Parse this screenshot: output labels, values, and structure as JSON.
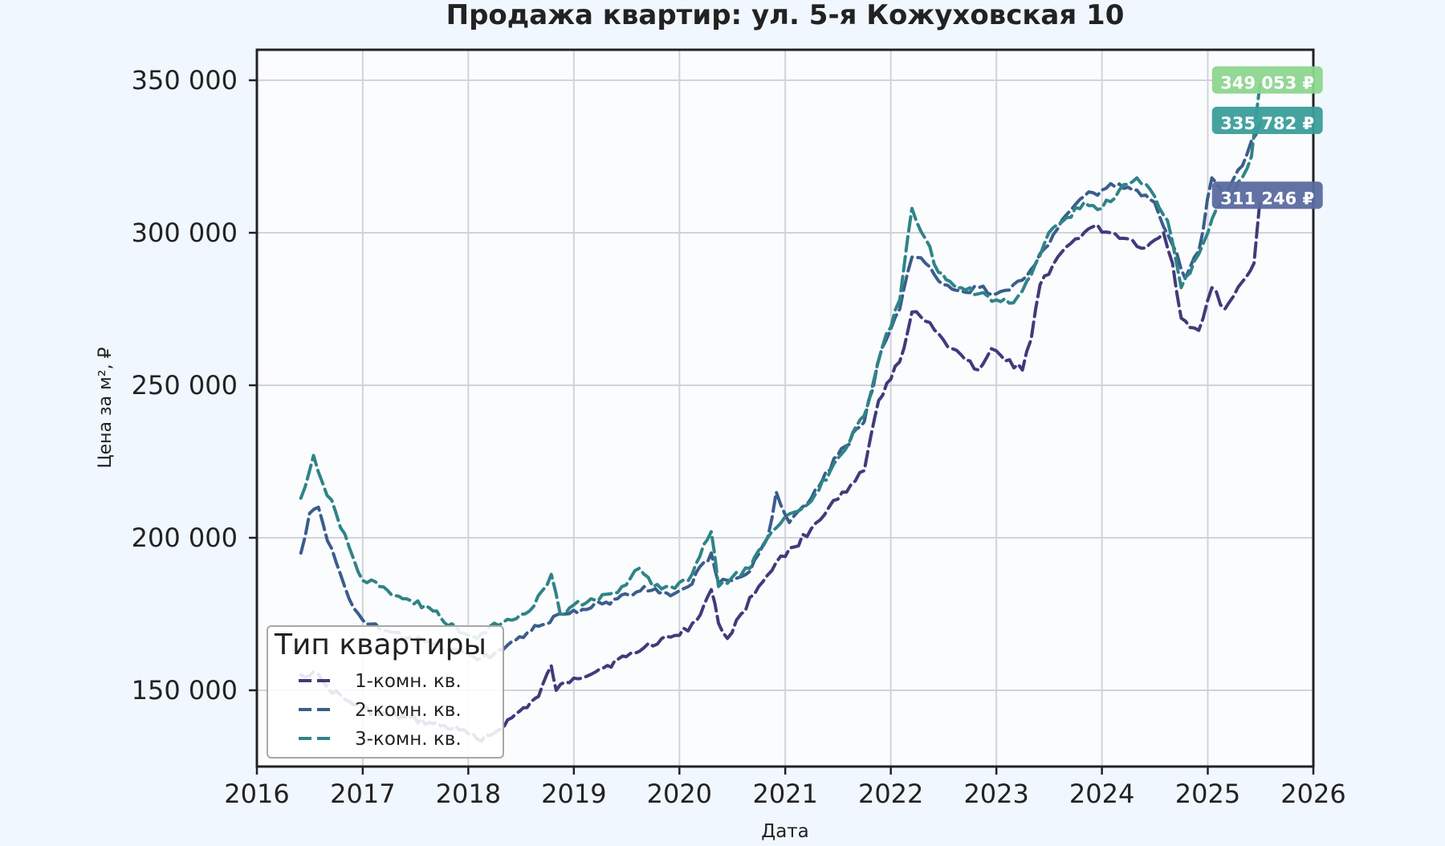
{
  "chart_data": {
    "type": "line",
    "title": "Продажа квартир: ул. 5-я Кожуховская 10",
    "xlabel": "Дата",
    "ylabel": "Цена за м², ₽",
    "xlim": [
      "2016-01-01",
      "2026-01-01"
    ],
    "ylim": [
      125000,
      360000
    ],
    "grid": true,
    "x_ticks": [
      "2016",
      "2017",
      "2018",
      "2019",
      "2020",
      "2021",
      "2022",
      "2023",
      "2024",
      "2025",
      "2026"
    ],
    "y_ticks": [
      150000,
      200000,
      250000,
      300000,
      350000
    ],
    "y_tick_labels": [
      "150 000",
      "200 000",
      "250 000",
      "300 000",
      "350 000"
    ],
    "legend": {
      "title": "Тип квартиры",
      "placement": "lower-left"
    },
    "series": [
      {
        "name": "1-комн. кв.",
        "color": "#413a7b",
        "end_label": "311 246 ₽",
        "label_color": "#5b6aa0",
        "points": [
          [
            "2016-06-01",
            155000
          ],
          [
            "2016-07-15",
            156000
          ],
          [
            "2016-09-01",
            151000
          ],
          [
            "2016-11-01",
            147000
          ],
          [
            "2017-01-01",
            144000
          ],
          [
            "2017-03-01",
            142000
          ],
          [
            "2017-06-01",
            141000
          ],
          [
            "2017-09-01",
            139000
          ],
          [
            "2017-12-01",
            137000
          ],
          [
            "2018-02-01",
            134000
          ],
          [
            "2018-04-01",
            136000
          ],
          [
            "2018-06-01",
            141000
          ],
          [
            "2018-09-01",
            148000
          ],
          [
            "2018-10-15",
            158000
          ],
          [
            "2018-11-01",
            150000
          ],
          [
            "2019-01-01",
            154000
          ],
          [
            "2019-04-01",
            157000
          ],
          [
            "2019-07-01",
            161000
          ],
          [
            "2019-09-01",
            164000
          ],
          [
            "2019-11-01",
            167000
          ],
          [
            "2020-01-01",
            168000
          ],
          [
            "2020-03-01",
            173000
          ],
          [
            "2020-04-20",
            183000
          ],
          [
            "2020-05-15",
            172000
          ],
          [
            "2020-06-15",
            167000
          ],
          [
            "2020-08-01",
            175000
          ],
          [
            "2020-10-01",
            184000
          ],
          [
            "2020-12-01",
            192000
          ],
          [
            "2021-02-01",
            197000
          ],
          [
            "2021-04-01",
            203000
          ],
          [
            "2021-06-01",
            210000
          ],
          [
            "2021-08-01",
            215000
          ],
          [
            "2021-10-01",
            222000
          ],
          [
            "2021-11-20",
            245000
          ],
          [
            "2022-01-01",
            252000
          ],
          [
            "2022-02-15",
            262000
          ],
          [
            "2022-03-15",
            274000
          ],
          [
            "2022-05-01",
            271000
          ],
          [
            "2022-07-01",
            265000
          ],
          [
            "2022-09-01",
            260000
          ],
          [
            "2022-11-01",
            255000
          ],
          [
            "2022-12-15",
            262000
          ],
          [
            "2023-02-01",
            258000
          ],
          [
            "2023-04-01",
            255000
          ],
          [
            "2023-05-01",
            265000
          ],
          [
            "2023-06-01",
            283000
          ],
          [
            "2023-08-01",
            292000
          ],
          [
            "2023-10-01",
            298000
          ],
          [
            "2023-12-01",
            302000
          ],
          [
            "2024-02-01",
            300000
          ],
          [
            "2024-04-01",
            298000
          ],
          [
            "2024-06-01",
            295000
          ],
          [
            "2024-08-01",
            300000
          ],
          [
            "2024-09-01",
            290000
          ],
          [
            "2024-10-01",
            272000
          ],
          [
            "2024-12-01",
            268000
          ],
          [
            "2025-01-15",
            282000
          ],
          [
            "2025-03-01",
            275000
          ],
          [
            "2025-05-01",
            284000
          ],
          [
            "2025-06-10",
            290000
          ],
          [
            "2025-07-01",
            311246
          ]
        ]
      },
      {
        "name": "2-комн. кв.",
        "color": "#3b5d8c",
        "end_label": "335 782 ₽",
        "label_color": "#3a9e9a",
        "points": [
          [
            "2016-06-01",
            195000
          ],
          [
            "2016-07-01",
            208000
          ],
          [
            "2016-08-01",
            210000
          ],
          [
            "2016-09-01",
            199000
          ],
          [
            "2016-10-01",
            192000
          ],
          [
            "2016-11-15",
            180000
          ],
          [
            "2017-01-01",
            173000
          ],
          [
            "2017-03-01",
            170000
          ],
          [
            "2017-06-01",
            167000
          ],
          [
            "2017-09-01",
            165000
          ],
          [
            "2017-12-01",
            163000
          ],
          [
            "2018-02-01",
            160000
          ],
          [
            "2018-04-01",
            162000
          ],
          [
            "2018-06-01",
            166000
          ],
          [
            "2018-09-01",
            171000
          ],
          [
            "2018-12-01",
            175000
          ],
          [
            "2019-03-01",
            177000
          ],
          [
            "2019-06-01",
            180000
          ],
          [
            "2019-09-01",
            184000
          ],
          [
            "2019-12-01",
            181000
          ],
          [
            "2020-02-01",
            184000
          ],
          [
            "2020-04-20",
            195000
          ],
          [
            "2020-05-15",
            185000
          ],
          [
            "2020-07-01",
            186000
          ],
          [
            "2020-09-01",
            189000
          ],
          [
            "2020-11-01",
            200000
          ],
          [
            "2020-12-01",
            215000
          ],
          [
            "2021-01-15",
            205000
          ],
          [
            "2021-04-01",
            213000
          ],
          [
            "2021-07-01",
            227000
          ],
          [
            "2021-10-01",
            238000
          ],
          [
            "2021-12-01",
            262000
          ],
          [
            "2022-02-01",
            275000
          ],
          [
            "2022-03-15",
            292000
          ],
          [
            "2022-05-01",
            290000
          ],
          [
            "2022-07-01",
            283000
          ],
          [
            "2022-09-01",
            281000
          ],
          [
            "2022-11-01",
            282000
          ],
          [
            "2023-01-01",
            280000
          ],
          [
            "2023-03-01",
            283000
          ],
          [
            "2023-05-01",
            288000
          ],
          [
            "2023-07-01",
            296000
          ],
          [
            "2023-09-01",
            306000
          ],
          [
            "2023-11-01",
            312000
          ],
          [
            "2024-01-01",
            314000
          ],
          [
            "2024-03-01",
            316000
          ],
          [
            "2024-05-01",
            314000
          ],
          [
            "2024-07-01",
            310000
          ],
          [
            "2024-09-01",
            296000
          ],
          [
            "2024-10-15",
            285000
          ],
          [
            "2024-12-01",
            294000
          ],
          [
            "2025-01-15",
            318000
          ],
          [
            "2025-03-01",
            312000
          ],
          [
            "2025-05-01",
            322000
          ],
          [
            "2025-07-01",
            335782
          ]
        ]
      },
      {
        "name": "3-комн. кв.",
        "color": "#2f8487",
        "end_label": "349 053 ₽",
        "label_color": "#8dd68f",
        "points": [
          [
            "2016-06-01",
            213000
          ],
          [
            "2016-07-15",
            227000
          ],
          [
            "2016-08-15",
            218000
          ],
          [
            "2016-10-01",
            208000
          ],
          [
            "2016-11-15",
            197000
          ],
          [
            "2017-01-01",
            186000
          ],
          [
            "2017-03-01",
            184000
          ],
          [
            "2017-06-01",
            180000
          ],
          [
            "2017-09-01",
            176000
          ],
          [
            "2017-12-01",
            169000
          ],
          [
            "2018-02-01",
            167000
          ],
          [
            "2018-04-01",
            172000
          ],
          [
            "2018-06-01",
            173000
          ],
          [
            "2018-08-01",
            176000
          ],
          [
            "2018-10-15",
            188000
          ],
          [
            "2018-11-15",
            175000
          ],
          [
            "2019-01-01",
            178000
          ],
          [
            "2019-03-01",
            180000
          ],
          [
            "2019-06-01",
            182000
          ],
          [
            "2019-08-15",
            190000
          ],
          [
            "2019-10-01",
            184000
          ],
          [
            "2019-12-01",
            184000
          ],
          [
            "2020-02-01",
            186000
          ],
          [
            "2020-04-20",
            202000
          ],
          [
            "2020-05-15",
            184000
          ],
          [
            "2020-07-01",
            187000
          ],
          [
            "2020-09-01",
            190000
          ],
          [
            "2020-11-01",
            200000
          ],
          [
            "2021-01-01",
            207000
          ],
          [
            "2021-04-01",
            212000
          ],
          [
            "2021-07-01",
            226000
          ],
          [
            "2021-10-01",
            240000
          ],
          [
            "2021-12-01",
            262000
          ],
          [
            "2022-02-01",
            278000
          ],
          [
            "2022-03-15",
            308000
          ],
          [
            "2022-05-01",
            298000
          ],
          [
            "2022-06-15",
            287000
          ],
          [
            "2022-09-01",
            282000
          ],
          [
            "2022-11-01",
            280000
          ],
          [
            "2023-01-01",
            278000
          ],
          [
            "2023-03-01",
            277000
          ],
          [
            "2023-05-01",
            286000
          ],
          [
            "2023-07-01",
            300000
          ],
          [
            "2023-09-01",
            305000
          ],
          [
            "2023-11-01",
            310000
          ],
          [
            "2024-01-01",
            308000
          ],
          [
            "2024-03-01",
            314000
          ],
          [
            "2024-05-01",
            318000
          ],
          [
            "2024-07-01",
            312000
          ],
          [
            "2024-08-15",
            304000
          ],
          [
            "2024-10-01",
            282000
          ],
          [
            "2024-12-01",
            293000
          ],
          [
            "2025-02-01",
            308000
          ],
          [
            "2025-04-01",
            313000
          ],
          [
            "2025-06-01",
            325000
          ],
          [
            "2025-07-01",
            349053
          ]
        ]
      }
    ]
  }
}
